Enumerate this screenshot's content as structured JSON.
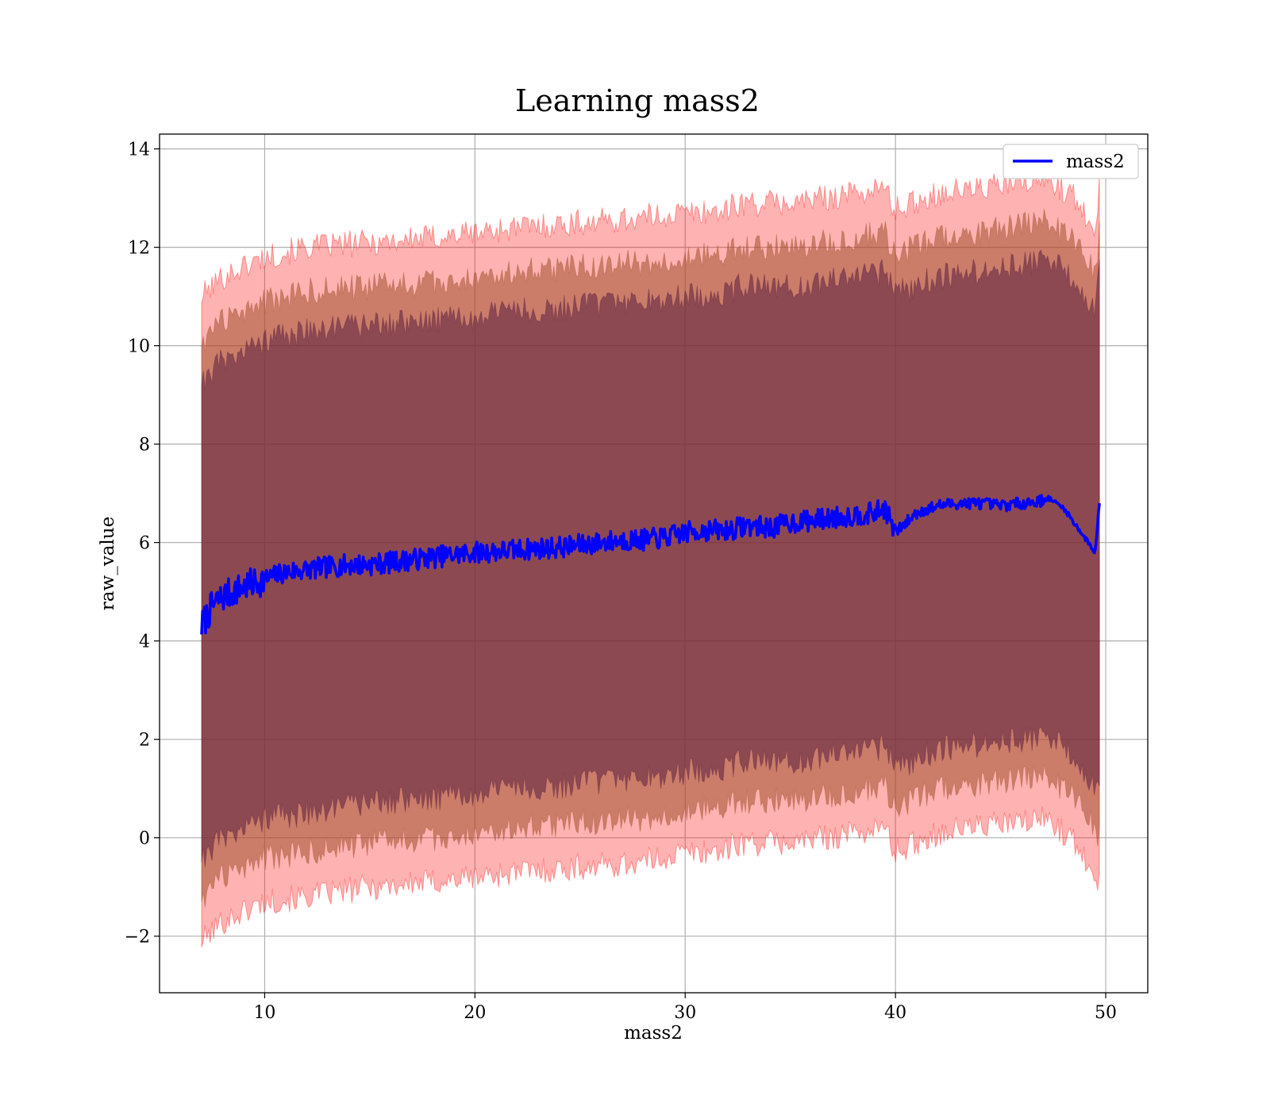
{
  "chart_data": {
    "type": "line",
    "title": "Learning mass2",
    "xlabel": "mass2",
    "ylabel": "raw_value",
    "xlim": [
      5,
      52
    ],
    "ylim": [
      -3.15,
      14.3
    ],
    "xticks": [
      10,
      20,
      30,
      40,
      50
    ],
    "yticks": [
      -2,
      0,
      2,
      4,
      6,
      8,
      10,
      12,
      14
    ],
    "ytick_labels": [
      "−2",
      "0",
      "2",
      "4",
      "6",
      "8",
      "10",
      "12",
      "14"
    ],
    "grid": true,
    "legend": {
      "placement": "top-right",
      "entries": [
        "mass2"
      ]
    },
    "colors": {
      "mean_line": "#0000ff",
      "band_outer": "#ff0000",
      "band_middle": "#a0522d",
      "band_inner": "#5b1f3f"
    },
    "mean_series": {
      "name": "mass2",
      "x": [
        7.0,
        7.5,
        8.0,
        9.0,
        10.0,
        11.0,
        12.0,
        13.0,
        14.0,
        15.0,
        16.0,
        17.0,
        18.0,
        19.0,
        20.0,
        21.0,
        22.0,
        23.0,
        24.0,
        25.0,
        26.0,
        27.0,
        28.0,
        29.0,
        30.0,
        31.0,
        32.0,
        33.0,
        34.0,
        35.0,
        36.0,
        37.0,
        38.0,
        39.0,
        39.5,
        40.0,
        41.0,
        42.0,
        43.0,
        44.0,
        45.0,
        46.0,
        47.0,
        47.3,
        48.0,
        49.0,
        49.5,
        49.7
      ],
      "y": [
        4.3,
        4.7,
        4.9,
        5.1,
        5.25,
        5.4,
        5.45,
        5.5,
        5.55,
        5.55,
        5.6,
        5.65,
        5.7,
        5.75,
        5.8,
        5.82,
        5.85,
        5.88,
        5.9,
        5.95,
        6.0,
        6.05,
        6.05,
        6.1,
        6.2,
        6.25,
        6.25,
        6.35,
        6.3,
        6.4,
        6.45,
        6.5,
        6.55,
        6.6,
        6.7,
        6.2,
        6.6,
        6.75,
        6.8,
        6.8,
        6.75,
        6.8,
        6.85,
        6.9,
        6.7,
        6.1,
        5.8,
        6.8
      ]
    },
    "bands": [
      {
        "name": "outer",
        "x": [
          7.0,
          8.0,
          10.0,
          12.0,
          15.0,
          18.0,
          20.0,
          22.0,
          25.0,
          28.0,
          30.0,
          32.0,
          32.5,
          35.0,
          38.0,
          39.5,
          40.0,
          42.0,
          44.0,
          46.0,
          47.3,
          48.5,
          49.5,
          49.7
        ],
        "upper": [
          11.0,
          11.4,
          11.8,
          12.0,
          12.1,
          12.2,
          12.3,
          12.4,
          12.5,
          12.6,
          12.7,
          12.75,
          12.9,
          12.9,
          13.1,
          13.2,
          12.75,
          13.1,
          13.2,
          13.3,
          13.4,
          13.0,
          12.4,
          13.3
        ],
        "lower": [
          -2.1,
          -1.7,
          -1.3,
          -1.2,
          -1.0,
          -0.9,
          -0.8,
          -0.7,
          -0.6,
          -0.5,
          -0.3,
          -0.25,
          -0.1,
          -0.1,
          0.1,
          0.2,
          -0.3,
          0.1,
          0.25,
          0.3,
          0.4,
          -0.1,
          -0.7,
          -0.9
        ]
      },
      {
        "name": "middle",
        "x": [
          7.0,
          8.0,
          10.0,
          12.0,
          15.0,
          18.0,
          20.0,
          22.0,
          25.0,
          28.0,
          30.0,
          32.0,
          32.5,
          35.0,
          38.0,
          39.5,
          40.0,
          42.0,
          44.0,
          46.0,
          47.3,
          48.5,
          49.5,
          49.7
        ],
        "upper": [
          10.1,
          10.5,
          10.9,
          11.1,
          11.2,
          11.3,
          11.4,
          11.5,
          11.6,
          11.7,
          11.8,
          11.85,
          12.0,
          12.0,
          12.2,
          12.3,
          11.85,
          12.2,
          12.3,
          12.45,
          12.55,
          12.1,
          11.5,
          12.3
        ],
        "lower": [
          -1.2,
          -0.8,
          -0.4,
          -0.3,
          -0.1,
          0.0,
          0.1,
          0.2,
          0.3,
          0.4,
          0.55,
          0.6,
          0.75,
          0.75,
          0.95,
          1.05,
          0.6,
          1.0,
          1.1,
          1.2,
          1.25,
          0.8,
          0.2,
          0.0
        ]
      },
      {
        "name": "inner",
        "x": [
          7.0,
          8.0,
          10.0,
          12.0,
          15.0,
          18.0,
          20.0,
          22.0,
          25.0,
          28.0,
          30.0,
          32.0,
          32.5,
          35.0,
          38.0,
          39.5,
          40.0,
          42.0,
          44.0,
          46.0,
          47.3,
          48.5,
          49.5,
          49.7
        ],
        "upper": [
          9.3,
          9.7,
          10.1,
          10.3,
          10.4,
          10.5,
          10.6,
          10.7,
          10.8,
          10.9,
          11.0,
          11.05,
          11.2,
          11.2,
          11.4,
          11.5,
          11.05,
          11.4,
          11.5,
          11.65,
          11.75,
          11.3,
          10.7,
          11.5
        ],
        "lower": [
          -0.4,
          0.0,
          0.4,
          0.5,
          0.7,
          0.8,
          0.9,
          1.0,
          1.1,
          1.2,
          1.35,
          1.4,
          1.55,
          1.55,
          1.75,
          1.85,
          1.4,
          1.8,
          1.9,
          2.0,
          2.05,
          1.6,
          1.0,
          0.8
        ]
      }
    ]
  }
}
